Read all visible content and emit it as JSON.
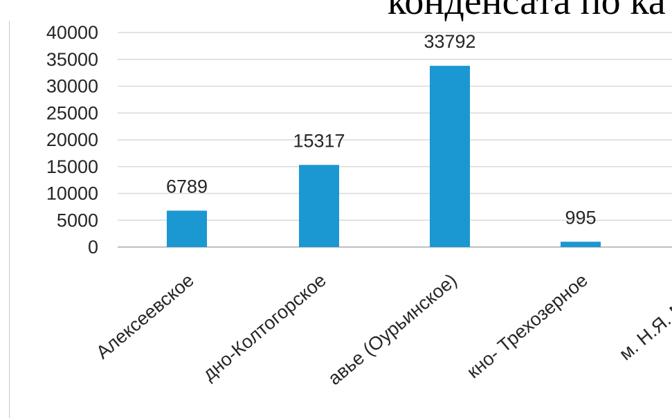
{
  "header": {
    "title_fragment": "конденсата по ка"
  },
  "chart_data": {
    "type": "bar",
    "categories": [
      "Алексеевское",
      "дно-Колтогорское",
      "авье (Оурьинское)",
      "кно- Трехозерное",
      "м. Н.Я. Медве"
    ],
    "values": [
      6789,
      15317,
      33792,
      995,
      null
    ],
    "value_labels": [
      "6789",
      "15317",
      "33792",
      "995",
      ""
    ],
    "ytick_labels": [
      "0",
      "5000",
      "10000",
      "15000",
      "20000",
      "25000",
      "30000",
      "35000",
      "40000"
    ],
    "ylim": [
      0,
      40000
    ],
    "grid": true,
    "bar_color": "#1b97d2",
    "grid_color": "#d9d9d9",
    "text_color": "#262626"
  }
}
